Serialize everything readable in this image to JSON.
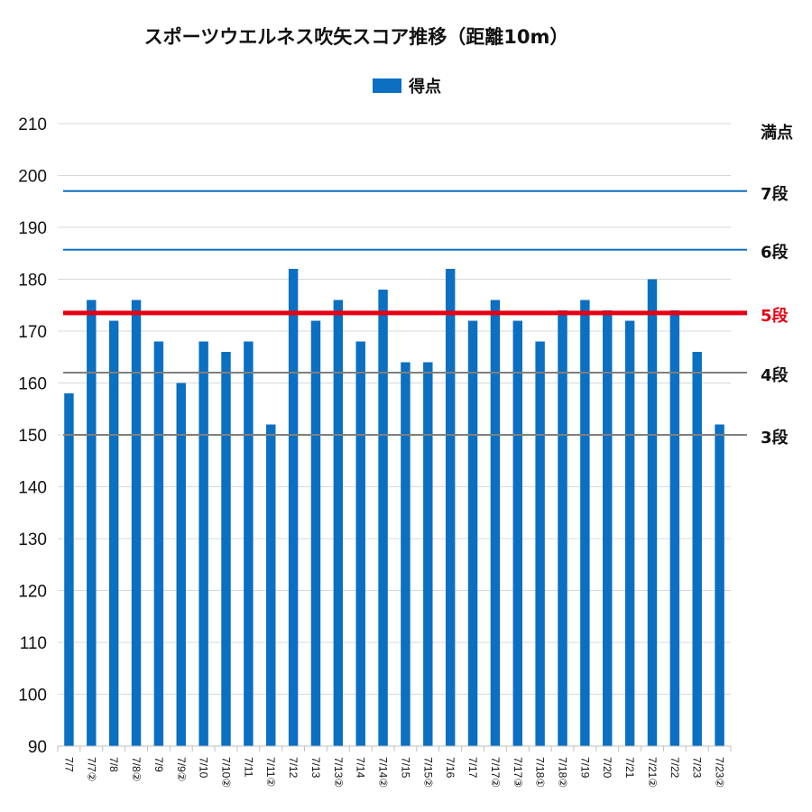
{
  "chart_data": {
    "type": "bar",
    "title": "スポーツウエルネス吹矢スコア推移（距離10m）",
    "legend": {
      "position": "top",
      "entries": [
        "得点"
      ]
    },
    "series": [
      {
        "name": "得点",
        "color": "#0B6FC2",
        "values": [
          158,
          176,
          172,
          176,
          168,
          160,
          168,
          166,
          168,
          152,
          182,
          172,
          176,
          168,
          178,
          164,
          164,
          182,
          172,
          176,
          172,
          168,
          174,
          176,
          174,
          172,
          180,
          174,
          166,
          152
        ]
      }
    ],
    "categories": [
      "7/7",
      "7/7②",
      "7/8",
      "7/8②",
      "7/9",
      "7/9②",
      "7/10",
      "7/10②",
      "7/11",
      "7/11②",
      "7/12",
      "7/13",
      "7/13②",
      "7/14",
      "7/14②",
      "7/15",
      "7/15②",
      "7/16",
      "7/17",
      "7/17②",
      "7/17③",
      "7/18①",
      "7/18②",
      "7/19",
      "7/20",
      "7/21",
      "7/21②",
      "7/22",
      "7/23",
      "7/23②"
    ],
    "ylim": [
      90,
      210
    ],
    "yticks": [
      90,
      100,
      110,
      120,
      130,
      140,
      150,
      160,
      170,
      180,
      190,
      200,
      210
    ],
    "grid": true,
    "reference_lines": [
      {
        "label": "満点",
        "value": 210,
        "color": "#111111",
        "line": false
      },
      {
        "label": "7段",
        "value": 197,
        "color": "#0B6FC2",
        "line": true
      },
      {
        "label": "6段",
        "value": 185.7,
        "color": "#0B6FC2",
        "line": true
      },
      {
        "label": "5段",
        "value": 173.5,
        "color": "#E60012",
        "line": true,
        "emphasis": true
      },
      {
        "label": "4段",
        "value": 162,
        "color": "#7F7F7F",
        "line": true
      },
      {
        "label": "3段",
        "value": 150,
        "color": "#7F7F7F",
        "line": true
      }
    ]
  }
}
